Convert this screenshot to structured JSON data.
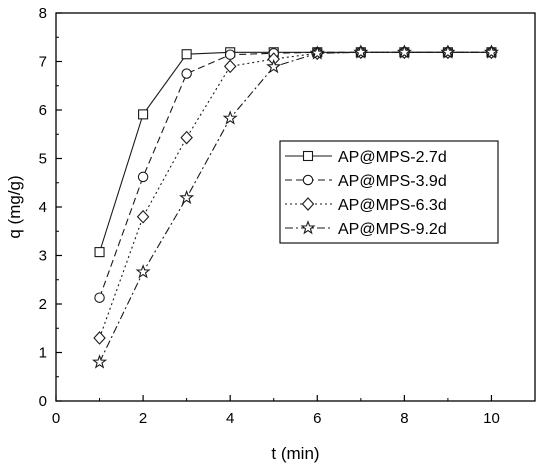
{
  "chart_data": {
    "type": "line",
    "xlabel": "t (min)",
    "ylabel": "q (mg/g)",
    "xlim": [
      0,
      11
    ],
    "ylim": [
      0,
      8
    ],
    "xticks": [
      "0",
      "2",
      "4",
      "6",
      "8",
      "10"
    ],
    "yticks": [
      "0",
      "1",
      "2",
      "3",
      "4",
      "5",
      "6",
      "7",
      "8"
    ],
    "grid": false,
    "legend_position": "center-right",
    "x": [
      1,
      2,
      3,
      4,
      5,
      6,
      7,
      8,
      9,
      10
    ],
    "series": [
      {
        "name": "AP@MPS-2.7d",
        "marker": "square",
        "line": "solid",
        "values": [
          3.07,
          5.91,
          7.15,
          7.19,
          7.19,
          7.19,
          7.19,
          7.19,
          7.19,
          7.19
        ]
      },
      {
        "name": "AP@MPS-3.9d",
        "marker": "circle",
        "line": "dashed",
        "values": [
          2.13,
          4.62,
          6.75,
          7.14,
          7.17,
          7.19,
          7.19,
          7.19,
          7.19,
          7.19
        ]
      },
      {
        "name": "AP@MPS-6.3d",
        "marker": "diamond",
        "line": "dotted",
        "values": [
          1.3,
          3.8,
          5.43,
          6.9,
          7.05,
          7.17,
          7.19,
          7.19,
          7.19,
          7.19
        ]
      },
      {
        "name": "AP@MPS-9.2d",
        "marker": "star",
        "line": "dash-dot",
        "values": [
          0.8,
          2.66,
          4.19,
          5.83,
          6.89,
          7.17,
          7.19,
          7.19,
          7.19,
          7.19
        ]
      }
    ],
    "colors": {
      "line": "#1a1a1a",
      "marker_fill": "#ffffff",
      "frame": "#000000"
    }
  }
}
